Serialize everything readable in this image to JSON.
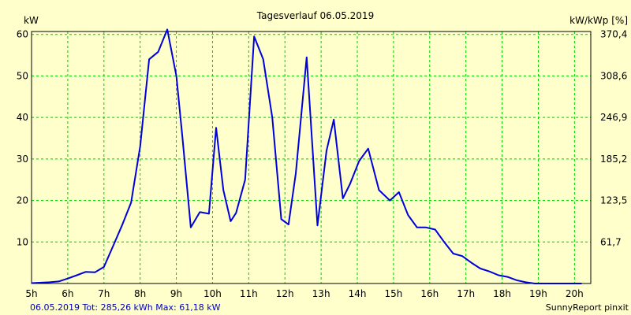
{
  "chart_data": {
    "type": "line",
    "title": "Tagesverlauf 06.05.2019",
    "ylabel": "kW",
    "y2label": "kW/kWp [%]",
    "x_ticks": [
      "5h",
      "6h",
      "7h",
      "8h",
      "9h",
      "10h",
      "11h",
      "12h",
      "13h",
      "14h",
      "15h",
      "16h",
      "17h",
      "18h",
      "19h",
      "20h"
    ],
    "y_ticks": [
      "10",
      "20",
      "30",
      "40",
      "50",
      "60"
    ],
    "y2_ticks": [
      "61,7",
      "123,5",
      "185,2",
      "246,9",
      "308,6",
      "370,4"
    ],
    "xlim": [
      5,
      20.45
    ],
    "ylim": [
      0,
      60.7
    ],
    "grid": true,
    "colors": {
      "line": "#0000dd",
      "grid": "#00cc00",
      "background": "#ffffcc",
      "footer": "#0000c0"
    },
    "series": [
      {
        "x": [
          5.0,
          5.5,
          5.75,
          6.0,
          6.25,
          6.5,
          6.75,
          7.0,
          7.25,
          7.5,
          7.75,
          8.0,
          8.25,
          8.5,
          8.75,
          9.0,
          9.17,
          9.4,
          9.65,
          9.9,
          10.1,
          10.3,
          10.5,
          10.65,
          10.9,
          11.15,
          11.4,
          11.65,
          11.9,
          12.1,
          12.3,
          12.6,
          12.9,
          13.15,
          13.35,
          13.6,
          13.8,
          14.05,
          14.3,
          14.6,
          14.9,
          15.15,
          15.4,
          15.65,
          15.9,
          16.15,
          16.4,
          16.65,
          16.9,
          17.15,
          17.4,
          17.65,
          17.9,
          18.15,
          18.4,
          18.65,
          18.9,
          19.15,
          19.4,
          19.65,
          19.9,
          20.2
        ],
        "y": [
          0.1,
          0.3,
          0.5,
          1.2,
          2.0,
          2.8,
          2.7,
          4.0,
          9.0,
          14.0,
          19.5,
          33.0,
          54.0,
          55.8,
          61.2,
          50.0,
          35.0,
          13.5,
          17.2,
          16.8,
          37.5,
          22.5,
          15.0,
          17.0,
          25.0,
          59.5,
          54.0,
          40.0,
          15.5,
          14.2,
          26.5,
          54.5,
          14.0,
          32.0,
          39.5,
          20.5,
          24.0,
          29.5,
          32.5,
          22.5,
          20.0,
          22.0,
          16.5,
          13.5,
          13.5,
          13.0,
          10.0,
          7.2,
          6.6,
          5.0,
          3.6,
          2.9,
          2.0,
          1.6,
          0.8,
          0.3,
          0.0,
          0.0,
          0.0,
          0.0,
          0.0,
          0.0
        ]
      }
    ]
  },
  "footer": {
    "stats": "06.05.2019 Tot: 285,26 kWh Max: 61,18 kW",
    "brand": "SunnyReport pinxit"
  }
}
